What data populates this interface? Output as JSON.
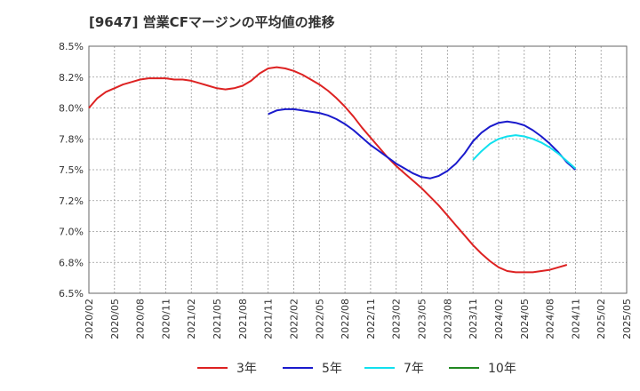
{
  "chart_data": {
    "type": "line",
    "title": "[9647]  営業CFマージンの平均値の推移",
    "xlabel": "",
    "ylabel": "",
    "ylim": [
      6.5,
      8.5
    ],
    "grid": true,
    "legend_position": "bottom",
    "y_ticks": [
      "8.5%",
      "8.2%",
      "8.0%",
      "7.8%",
      "7.5%",
      "7.2%",
      "7.0%",
      "6.8%",
      "6.5%"
    ],
    "x_ticks": [
      "2020/02",
      "2020/05",
      "2020/08",
      "2020/11",
      "2021/02",
      "2021/05",
      "2021/08",
      "2021/11",
      "2022/02",
      "2022/05",
      "2022/08",
      "2022/11",
      "2023/02",
      "2023/05",
      "2023/08",
      "2023/11",
      "2024/02",
      "2024/05",
      "2024/08",
      "2024/11",
      "2025/02",
      "2025/05"
    ],
    "series": [
      {
        "name": "3年",
        "color": "#dd2222",
        "points": [
          [
            "2020/02",
            8.0
          ],
          [
            "2020/03",
            8.08
          ],
          [
            "2020/04",
            8.13
          ],
          [
            "2020/05",
            8.16
          ],
          [
            "2020/06",
            8.19
          ],
          [
            "2020/07",
            8.21
          ],
          [
            "2020/08",
            8.23
          ],
          [
            "2020/09",
            8.24
          ],
          [
            "2020/10",
            8.24
          ],
          [
            "2020/11",
            8.24
          ],
          [
            "2020/12",
            8.23
          ],
          [
            "2021/01",
            8.23
          ],
          [
            "2021/02",
            8.22
          ],
          [
            "2021/03",
            8.2
          ],
          [
            "2021/04",
            8.18
          ],
          [
            "2021/05",
            8.16
          ],
          [
            "2021/06",
            8.15
          ],
          [
            "2021/07",
            8.16
          ],
          [
            "2021/08",
            8.18
          ],
          [
            "2021/09",
            8.22
          ],
          [
            "2021/10",
            8.28
          ],
          [
            "2021/11",
            8.32
          ],
          [
            "2021/12",
            8.33
          ],
          [
            "2022/01",
            8.32
          ],
          [
            "2022/02",
            8.3
          ],
          [
            "2022/03",
            8.27
          ],
          [
            "2022/04",
            8.23
          ],
          [
            "2022/05",
            8.19
          ],
          [
            "2022/06",
            8.14
          ],
          [
            "2022/07",
            8.08
          ],
          [
            "2022/08",
            8.01
          ],
          [
            "2022/09",
            7.93
          ],
          [
            "2022/10",
            7.84
          ],
          [
            "2022/11",
            7.76
          ],
          [
            "2022/12",
            7.68
          ],
          [
            "2023/01",
            7.6
          ],
          [
            "2023/02",
            7.53
          ],
          [
            "2023/03",
            7.47
          ],
          [
            "2023/04",
            7.41
          ],
          [
            "2023/05",
            7.35
          ],
          [
            "2023/06",
            7.28
          ],
          [
            "2023/07",
            7.21
          ],
          [
            "2023/08",
            7.13
          ],
          [
            "2023/09",
            7.05
          ],
          [
            "2023/10",
            6.97
          ],
          [
            "2023/11",
            6.89
          ],
          [
            "2023/12",
            6.82
          ],
          [
            "2024/01",
            6.76
          ],
          [
            "2024/02",
            6.71
          ],
          [
            "2024/03",
            6.68
          ],
          [
            "2024/04",
            6.67
          ],
          [
            "2024/05",
            6.67
          ],
          [
            "2024/06",
            6.67
          ],
          [
            "2024/07",
            6.68
          ],
          [
            "2024/08",
            6.69
          ],
          [
            "2024/09",
            6.71
          ],
          [
            "2024/10",
            6.73
          ]
        ]
      },
      {
        "name": "5年",
        "color": "#1a1acc",
        "points": [
          [
            "2021/11",
            7.95
          ],
          [
            "2021/12",
            7.98
          ],
          [
            "2022/01",
            7.99
          ],
          [
            "2022/02",
            7.99
          ],
          [
            "2022/03",
            7.98
          ],
          [
            "2022/04",
            7.97
          ],
          [
            "2022/05",
            7.96
          ],
          [
            "2022/06",
            7.94
          ],
          [
            "2022/07",
            7.91
          ],
          [
            "2022/08",
            7.87
          ],
          [
            "2022/09",
            7.82
          ],
          [
            "2022/10",
            7.76
          ],
          [
            "2022/11",
            7.7
          ],
          [
            "2022/12",
            7.65
          ],
          [
            "2023/01",
            7.6
          ],
          [
            "2023/02",
            7.55
          ],
          [
            "2023/03",
            7.51
          ],
          [
            "2023/04",
            7.47
          ],
          [
            "2023/05",
            7.44
          ],
          [
            "2023/06",
            7.43
          ],
          [
            "2023/07",
            7.45
          ],
          [
            "2023/08",
            7.49
          ],
          [
            "2023/09",
            7.55
          ],
          [
            "2023/10",
            7.63
          ],
          [
            "2023/11",
            7.73
          ],
          [
            "2023/12",
            7.8
          ],
          [
            "2024/01",
            7.85
          ],
          [
            "2024/02",
            7.88
          ],
          [
            "2024/03",
            7.89
          ],
          [
            "2024/04",
            7.88
          ],
          [
            "2024/05",
            7.86
          ],
          [
            "2024/06",
            7.82
          ],
          [
            "2024/07",
            7.77
          ],
          [
            "2024/08",
            7.71
          ],
          [
            "2024/09",
            7.64
          ],
          [
            "2024/10",
            7.56
          ],
          [
            "2024/11",
            7.5
          ]
        ]
      },
      {
        "name": "7年",
        "color": "#11e0ee",
        "points": [
          [
            "2023/11",
            7.58
          ],
          [
            "2023/12",
            7.65
          ],
          [
            "2024/01",
            7.71
          ],
          [
            "2024/02",
            7.75
          ],
          [
            "2024/03",
            7.77
          ],
          [
            "2024/04",
            7.78
          ],
          [
            "2024/05",
            7.77
          ],
          [
            "2024/06",
            7.75
          ],
          [
            "2024/07",
            7.72
          ],
          [
            "2024/08",
            7.68
          ],
          [
            "2024/09",
            7.63
          ],
          [
            "2024/10",
            7.57
          ],
          [
            "2024/11",
            7.51
          ]
        ]
      },
      {
        "name": "10年",
        "color": "#228822",
        "points": []
      }
    ]
  }
}
